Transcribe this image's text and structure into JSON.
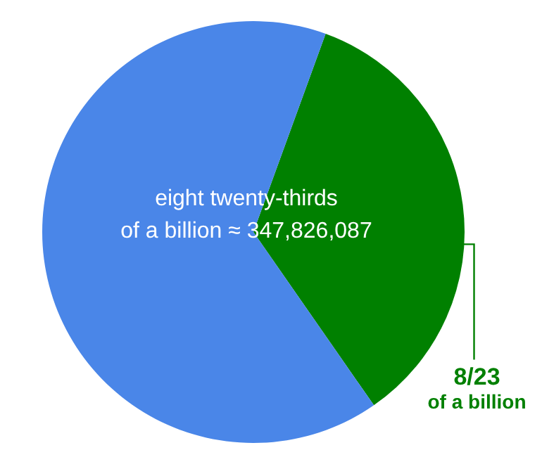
{
  "chart_data": {
    "type": "pie",
    "categories": [
      "8/23 of a billion",
      null
    ],
    "values": [
      34.78,
      65.22
    ],
    "colors": [
      "#008000",
      "#4a86e8"
    ],
    "annotations": [
      "eight twenty-thirds",
      "of a billion ≈ 347,826,087"
    ]
  }
}
